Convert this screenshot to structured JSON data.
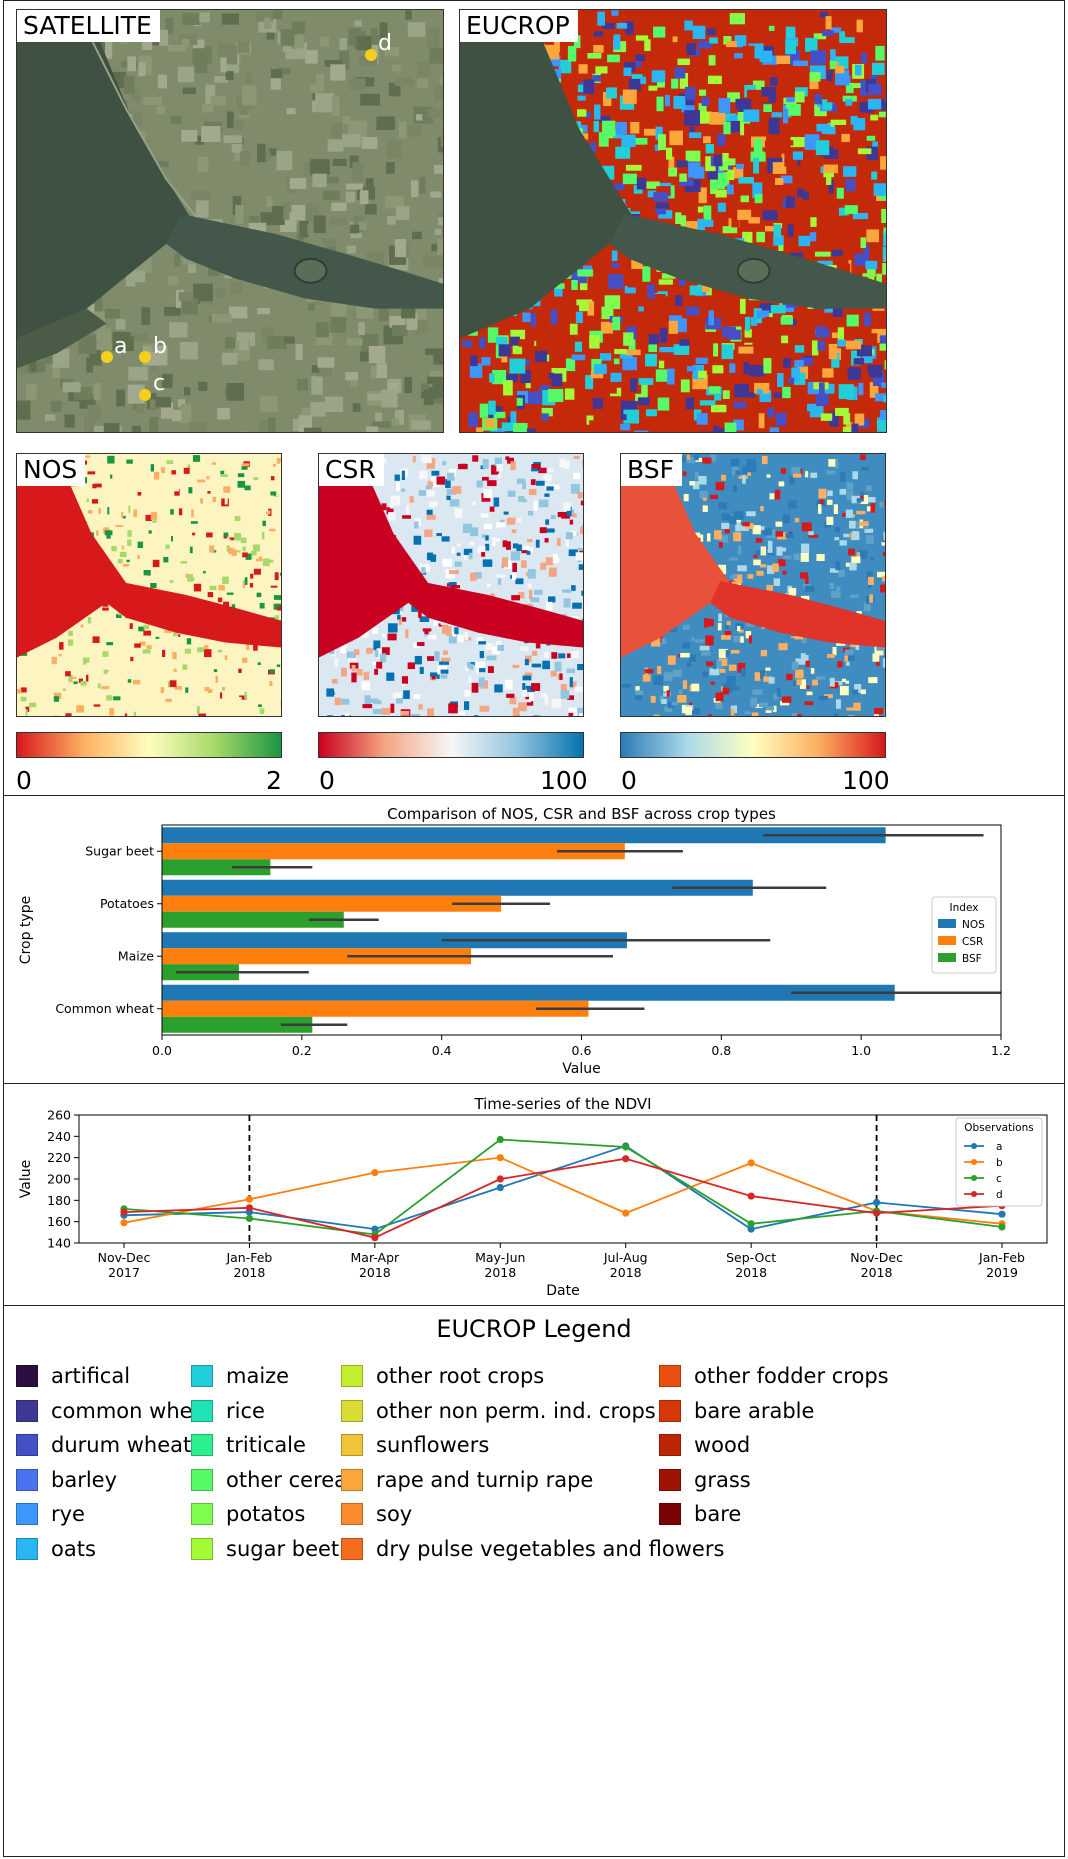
{
  "maps": {
    "satellite": {
      "label": "SATELLITE",
      "points": [
        {
          "label": "a"
        },
        {
          "label": "b"
        },
        {
          "label": "c"
        },
        {
          "label": "d"
        }
      ]
    },
    "eucrop": {
      "label": "EUCROP"
    },
    "nos": {
      "label": "NOS",
      "colorbar": {
        "min": "0",
        "max": "2",
        "colors": [
          "#d7191c",
          "#fefebd",
          "#1a9641"
        ]
      }
    },
    "csr": {
      "label": "CSR",
      "colorbar": {
        "min": "0",
        "max": "100",
        "colors": [
          "#ca0020",
          "#f7f7f7",
          "#0571b0"
        ]
      }
    },
    "bsf": {
      "label": "BSF",
      "colorbar": {
        "min": "0",
        "max": "100",
        "colors": [
          "#2c7bb6",
          "#ffffbf",
          "#d7191c"
        ]
      }
    }
  },
  "chart_data": [
    {
      "type": "bar",
      "orientation": "horizontal",
      "title": "Comparison of NOS, CSR and BSF across crop types",
      "xlabel": "Value",
      "ylabel": "Crop type",
      "xlim": [
        0,
        1.2
      ],
      "xticks": [
        "0.0",
        "0.2",
        "0.4",
        "0.6",
        "0.8",
        "1.0",
        "1.2"
      ],
      "categories": [
        "Sugar beet",
        "Potatoes",
        "Maize",
        "Common wheat"
      ],
      "legend": {
        "title": "Index",
        "position": "center-right"
      },
      "series": [
        {
          "name": "NOS",
          "color": "#1f77b4",
          "values": [
            1.035,
            0.845,
            0.665,
            1.048
          ],
          "ci_low": [
            0.86,
            0.73,
            0.4,
            0.9
          ],
          "ci_high": [
            1.175,
            0.95,
            0.87,
            1.2
          ]
        },
        {
          "name": "CSR",
          "color": "#ff7f0e",
          "values": [
            0.662,
            0.485,
            0.442,
            0.61
          ],
          "ci_low": [
            0.565,
            0.415,
            0.265,
            0.535
          ],
          "ci_high": [
            0.745,
            0.555,
            0.645,
            0.69
          ]
        },
        {
          "name": "BSF",
          "color": "#2ca02c",
          "values": [
            0.155,
            0.26,
            0.11,
            0.215
          ],
          "ci_low": [
            0.1,
            0.21,
            0.02,
            0.17
          ],
          "ci_high": [
            0.215,
            0.31,
            0.21,
            0.265
          ]
        }
      ]
    },
    {
      "type": "line",
      "title": "Time-series of the NDVI",
      "xlabel": "Date",
      "ylabel": "Value",
      "ylim": [
        140,
        260
      ],
      "yticks": [
        "140",
        "160",
        "180",
        "200",
        "220",
        "240",
        "260"
      ],
      "x": [
        [
          "Nov-Dec",
          "2017"
        ],
        [
          "Jan-Feb",
          "2018"
        ],
        [
          "Mar-Apr",
          "2018"
        ],
        [
          "May-Jun",
          "2018"
        ],
        [
          "Jul-Aug",
          "2018"
        ],
        [
          "Sep-Oct",
          "2018"
        ],
        [
          "Nov-Dec",
          "2018"
        ],
        [
          "Jan-Feb",
          "2019"
        ]
      ],
      "vlines": [
        "Jan-Feb 2018",
        "Nov-Dec 2018"
      ],
      "legend": {
        "title": "Observations",
        "position": "top-right"
      },
      "series": [
        {
          "name": "a",
          "color": "#1f77b4",
          "values": [
            166,
            169,
            153,
            192,
            231,
            153,
            178,
            167
          ]
        },
        {
          "name": "b",
          "color": "#ff7f0e",
          "values": [
            159,
            181,
            206,
            220,
            168,
            215,
            170,
            158
          ]
        },
        {
          "name": "c",
          "color": "#2ca02c",
          "values": [
            172,
            163,
            148,
            237,
            230,
            158,
            170,
            155
          ]
        },
        {
          "name": "d",
          "color": "#d62728",
          "values": [
            169,
            173,
            145,
            200,
            219,
            184,
            168,
            175
          ]
        }
      ]
    }
  ],
  "legend": {
    "title": "EUCROP Legend",
    "columns": [
      [
        {
          "label": "artifical",
          "color": "#2a0f43"
        },
        {
          "label": "common wheat",
          "color": "#3f3796"
        },
        {
          "label": "durum wheat",
          "color": "#4550c6"
        },
        {
          "label": "barley",
          "color": "#4a74ee"
        },
        {
          "label": "rye",
          "color": "#3d96fa"
        },
        {
          "label": "oats",
          "color": "#2ab6f2"
        }
      ],
      [
        {
          "label": "maize",
          "color": "#22cfd8"
        },
        {
          "label": "rice",
          "color": "#1fe2b6"
        },
        {
          "label": "triticale",
          "color": "#2cf08f"
        },
        {
          "label": "other cereals",
          "color": "#55fb66"
        },
        {
          "label": "potatos",
          "color": "#7ffd4e"
        },
        {
          "label": "sugar beet",
          "color": "#a2fb36"
        }
      ],
      [
        {
          "label": "other root crops",
          "color": "#c2ef34"
        },
        {
          "label": "other non perm. ind. crops",
          "color": "#d9dc35"
        },
        {
          "label": "sunflowers",
          "color": "#efc33a"
        },
        {
          "label": "rape and turnip rape",
          "color": "#fba73c"
        },
        {
          "label": "soy",
          "color": "#fc8a2e"
        },
        {
          "label": "dry pulse vegetables and flowers",
          "color": "#f56c1c"
        }
      ],
      [
        {
          "label": "other fodder crops",
          "color": "#e94f10"
        },
        {
          "label": "bare arable",
          "color": "#d73808"
        },
        {
          "label": "wood",
          "color": "#bd2404"
        },
        {
          "label": "grass",
          "color": "#9e1203"
        },
        {
          "label": "bare",
          "color": "#7a0403"
        }
      ]
    ]
  }
}
